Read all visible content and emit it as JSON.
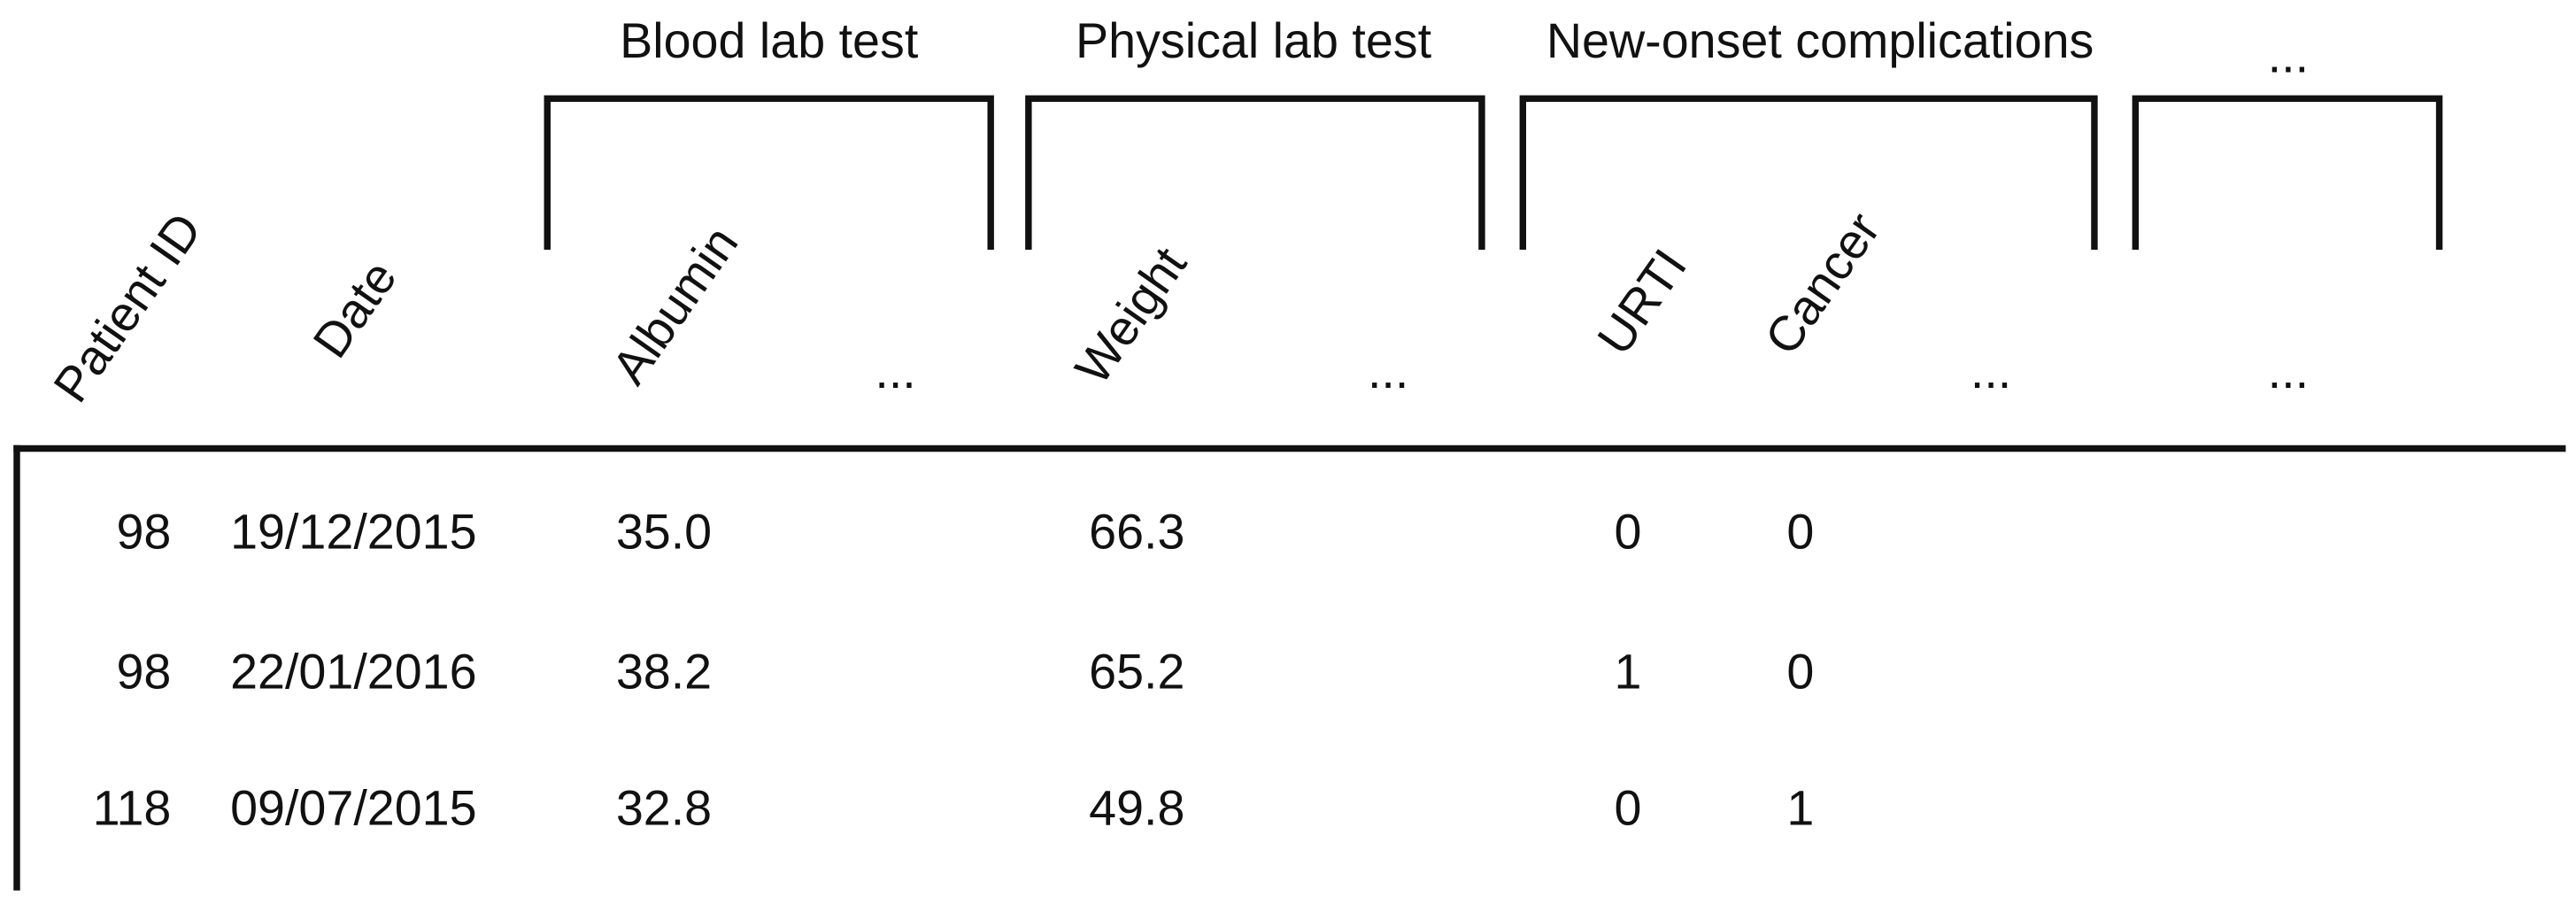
{
  "groups": [
    "Blood lab test",
    "Physical lab test",
    "New-onset complications",
    "..."
  ],
  "columns": [
    "Patient ID",
    "Date",
    "Albumin",
    "...",
    "Weight",
    "...",
    "URTI",
    "Cancer",
    "...",
    "..."
  ],
  "rows": [
    [
      "98",
      "19/12/2015",
      "35.0",
      "66.3",
      "0",
      "0"
    ],
    [
      "98",
      "22/01/2016",
      "38.2",
      "65.2",
      "1",
      "0"
    ],
    [
      "118",
      "09/07/2015",
      "32.8",
      "49.8",
      "0",
      "1"
    ]
  ]
}
